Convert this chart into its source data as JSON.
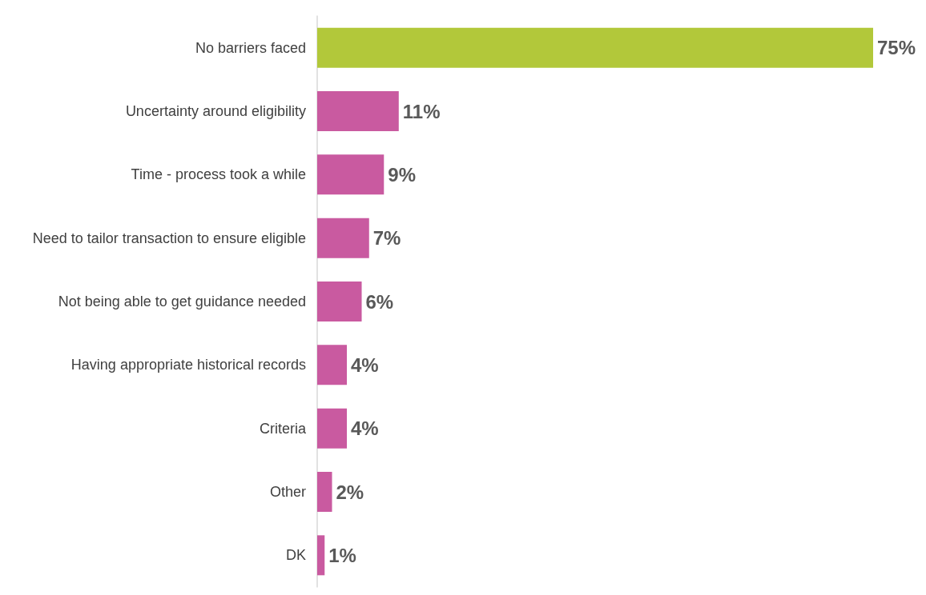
{
  "chart_data": {
    "type": "bar",
    "orientation": "horizontal",
    "categories": [
      "No barriers faced",
      "Uncertainty around eligibility",
      "Time - process took a while",
      "Need to tailor transaction to ensure eligible",
      "Not being able to get guidance needed",
      "Having appropriate historical records",
      "Criteria",
      "Other",
      "DK"
    ],
    "values": [
      75,
      11,
      9,
      7,
      6,
      4,
      4,
      2,
      1
    ],
    "value_labels": [
      "75%",
      "11%",
      "9%",
      "7%",
      "6%",
      "4%",
      "4%",
      "2%",
      "1%"
    ],
    "colors": [
      "#b2c83a",
      "#c95aa0",
      "#c95aa0",
      "#c95aa0",
      "#c95aa0",
      "#c95aa0",
      "#c95aa0",
      "#c95aa0",
      "#c95aa0"
    ]
  }
}
